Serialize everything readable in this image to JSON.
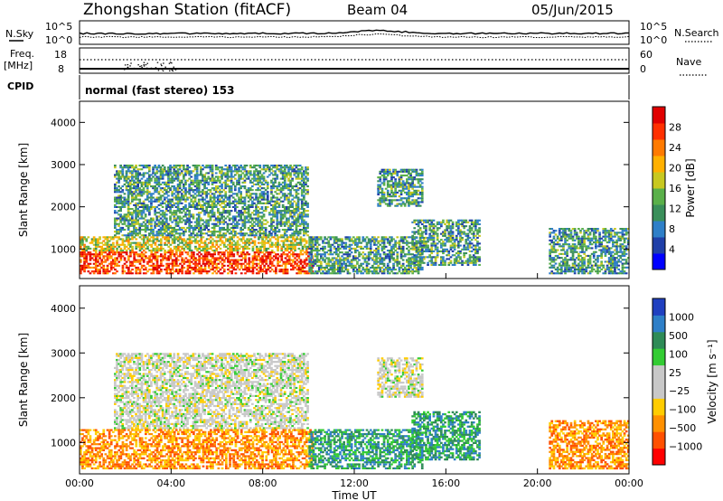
{
  "header": {
    "station": "Zhongshan Station (fitACF)",
    "beam": "Beam 04",
    "date": "05/Jun/2015"
  },
  "top_panels": {
    "nsky_label": "N.Sky",
    "nsky_ticks": [
      "10^5",
      "10^0"
    ],
    "nsearch_label": "N.Search",
    "nsearch_ticks": [
      "10^5",
      "10^0"
    ],
    "freq_label": "Freq.",
    "freq_unit": "[MHz]",
    "freq_ticks": [
      "18",
      "8"
    ],
    "nave_label": "Nave",
    "nave_ticks": [
      "60",
      "0"
    ],
    "cpid_label": "CPID",
    "cpid_text": "normal (fast stereo) 153"
  },
  "colors": {
    "power": [
      "#0000ff",
      "#1f3fa8",
      "#2e7fc8",
      "#3a8f5a",
      "#5ab04a",
      "#c8c820",
      "#ffb000",
      "#ff7a00",
      "#ff3000",
      "#e00000"
    ],
    "velocity": [
      "#ff0000",
      "#ff5000",
      "#ff9000",
      "#ffcc00",
      "#c8c8c8",
      "#c8c8c8",
      "#33cc33",
      "#2e8b57",
      "#2e7fc8",
      "#2040c0"
    ]
  },
  "chart_data": [
    {
      "type": "heatmap",
      "panel": "power",
      "ylabel": "Slant Range [km]",
      "xlabel": "",
      "xlim": [
        "00:00",
        "00:00"
      ],
      "ylim": [
        300,
        4500
      ],
      "yticks": [
        "1000",
        "2000",
        "3000",
        "4000"
      ],
      "colorbar_label": "Power [dB]",
      "colorbar_ticks": [
        "4",
        "8",
        "12",
        "16",
        "20",
        "24",
        "28"
      ],
      "echo_regions": [
        {
          "t_start": 0.0,
          "t_end": 10.2,
          "r_min": 400,
          "r_max": 1300,
          "level": "high"
        },
        {
          "t_start": 1.5,
          "t_end": 10.0,
          "r_min": 1300,
          "r_max": 3000,
          "level": "mid"
        },
        {
          "t_start": 10.0,
          "t_end": 15.0,
          "r_min": 400,
          "r_max": 1300,
          "level": "mid"
        },
        {
          "t_start": 13.0,
          "t_end": 15.0,
          "r_min": 2000,
          "r_max": 2900,
          "level": "mid"
        },
        {
          "t_start": 14.5,
          "t_end": 17.5,
          "r_min": 600,
          "r_max": 1700,
          "level": "mid"
        },
        {
          "t_start": 20.5,
          "t_end": 24.0,
          "r_min": 400,
          "r_max": 1500,
          "level": "mid"
        }
      ]
    },
    {
      "type": "heatmap",
      "panel": "velocity",
      "ylabel": "Slant Range [km]",
      "xlabel": "Time UT",
      "xticks": [
        "00:00",
        "04:00",
        "08:00",
        "12:00",
        "16:00",
        "20:00",
        "00:00"
      ],
      "ylim": [
        300,
        4500
      ],
      "yticks": [
        "1000",
        "2000",
        "3000",
        "4000"
      ],
      "colorbar_label": "Velocity [m s⁻¹]",
      "colorbar_ticks": [
        "1000",
        "500",
        "100",
        "25",
        "−25",
        "−100",
        "−500",
        "−1000"
      ],
      "echo_regions": [
        {
          "t_start": 0.0,
          "t_end": 10.2,
          "r_min": 400,
          "r_max": 1300,
          "velocity": "negative"
        },
        {
          "t_start": 1.5,
          "t_end": 10.0,
          "r_min": 1300,
          "r_max": 3000,
          "velocity": "near-zero"
        },
        {
          "t_start": 10.0,
          "t_end": 15.0,
          "r_min": 400,
          "r_max": 1300,
          "velocity": "positive"
        },
        {
          "t_start": 13.0,
          "t_end": 15.0,
          "r_min": 2000,
          "r_max": 2900,
          "velocity": "near-zero"
        },
        {
          "t_start": 14.5,
          "t_end": 17.5,
          "r_min": 600,
          "r_max": 1700,
          "velocity": "positive"
        },
        {
          "t_start": 20.5,
          "t_end": 24.0,
          "r_min": 400,
          "r_max": 1500,
          "velocity": "negative"
        }
      ]
    }
  ]
}
